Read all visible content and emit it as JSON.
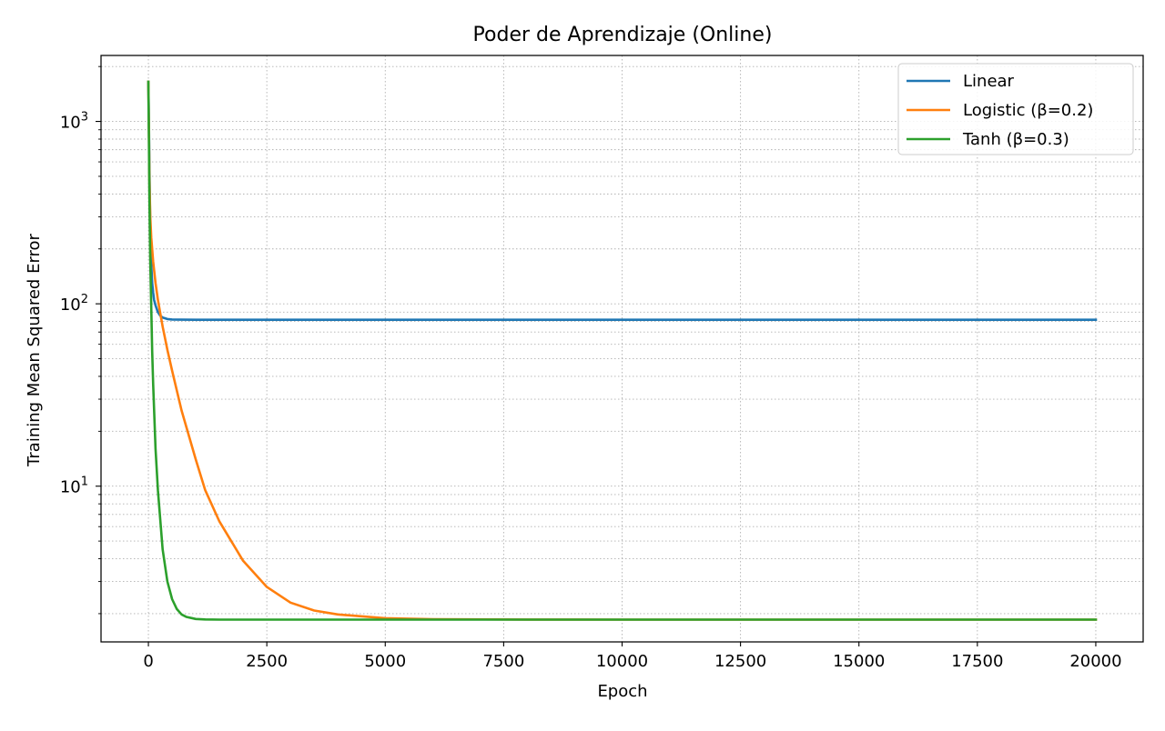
{
  "chart_data": {
    "type": "line",
    "title": "Poder de Aprendizaje (Online)",
    "xlabel": "Epoch",
    "ylabel": "Training Mean Squared Error",
    "xlim": [
      -1000,
      21000
    ],
    "ylim": [
      1.4,
      2300
    ],
    "y_scale": "log",
    "x_ticks": [
      0,
      2500,
      5000,
      7500,
      10000,
      12500,
      15000,
      17500,
      20000
    ],
    "y_ticks": [
      {
        "value": 10,
        "base": "10",
        "exp": "1"
      },
      {
        "value": 100,
        "base": "10",
        "exp": "2"
      },
      {
        "value": 1000,
        "base": "10",
        "exp": "3"
      }
    ],
    "grid": true,
    "legend_position": "top-right",
    "series": [
      {
        "name": "Linear",
        "color": "#1f77b4",
        "x": [
          0,
          10,
          20,
          30,
          40,
          50,
          60,
          80,
          100,
          120,
          150,
          200,
          250,
          300,
          400,
          500,
          700,
          1000,
          2000,
          5000,
          10000,
          15000,
          20000
        ],
        "values": [
          1650,
          1000,
          600,
          380,
          260,
          200,
          165,
          130,
          115,
          105,
          98,
          90,
          86,
          84,
          82.5,
          82,
          81.8,
          81.7,
          81.7,
          81.7,
          81.7,
          81.7,
          81.7
        ]
      },
      {
        "name": "Logistic (β=0.2)",
        "color": "#ff7f0e",
        "x": [
          0,
          10,
          20,
          40,
          60,
          100,
          150,
          200,
          300,
          400,
          500,
          700,
          1000,
          1200,
          1500,
          2000,
          2500,
          3000,
          3500,
          4000,
          5000,
          6000,
          8000,
          10000,
          15000,
          20000
        ],
        "values": [
          1650,
          900,
          500,
          300,
          230,
          170,
          130,
          105,
          75,
          56,
          43,
          26,
          14,
          9.5,
          6.4,
          3.9,
          2.8,
          2.3,
          2.08,
          1.98,
          1.89,
          1.865,
          1.857,
          1.855,
          1.855,
          1.855
        ]
      },
      {
        "name": "Tanh (β=0.3)",
        "color": "#2ca02c",
        "x": [
          0,
          10,
          20,
          40,
          60,
          80,
          100,
          150,
          200,
          300,
          400,
          500,
          600,
          700,
          800,
          1000,
          1200,
          1500,
          2000,
          5000,
          10000,
          15000,
          20000
        ],
        "values": [
          1650,
          800,
          400,
          170,
          95,
          55,
          36,
          16,
          9.5,
          4.5,
          3,
          2.4,
          2.12,
          1.98,
          1.92,
          1.87,
          1.86,
          1.855,
          1.855,
          1.855,
          1.855,
          1.855,
          1.855
        ]
      }
    ]
  }
}
